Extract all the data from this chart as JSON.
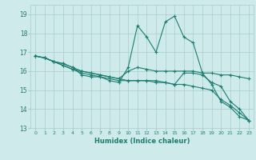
{
  "xlabel": "Humidex (Indice chaleur)",
  "xlim": [
    -0.5,
    23.5
  ],
  "ylim": [
    13.0,
    19.5
  ],
  "yticks": [
    13,
    14,
    15,
    16,
    17,
    18,
    19
  ],
  "xticks": [
    0,
    1,
    2,
    3,
    4,
    5,
    6,
    7,
    8,
    9,
    10,
    11,
    12,
    13,
    14,
    15,
    16,
    17,
    18,
    19,
    20,
    21,
    22,
    23
  ],
  "bg_color": "#ceeaea",
  "grid_color": "#a8cccc",
  "line_color": "#1e7d72",
  "line1": [
    16.8,
    16.7,
    16.5,
    16.4,
    16.2,
    15.8,
    15.7,
    15.7,
    15.5,
    15.4,
    16.2,
    18.4,
    17.8,
    17.0,
    18.6,
    18.9,
    17.8,
    17.5,
    15.9,
    15.3,
    14.4,
    14.1,
    13.6,
    13.4
  ],
  "line2": [
    16.8,
    16.7,
    16.5,
    16.4,
    16.2,
    16.0,
    15.9,
    15.8,
    15.7,
    15.6,
    16.0,
    16.2,
    16.1,
    16.0,
    16.0,
    16.0,
    16.0,
    16.0,
    15.9,
    15.9,
    15.8,
    15.8,
    15.7,
    15.6
  ],
  "line3": [
    16.8,
    16.7,
    16.5,
    16.3,
    16.1,
    15.9,
    15.8,
    15.7,
    15.6,
    15.5,
    15.5,
    15.5,
    15.5,
    15.4,
    15.4,
    15.3,
    15.3,
    15.2,
    15.1,
    15.0,
    14.5,
    14.2,
    13.8,
    13.4
  ],
  "line4": [
    16.8,
    16.7,
    16.5,
    16.3,
    16.1,
    16.0,
    15.9,
    15.8,
    15.7,
    15.6,
    15.5,
    15.5,
    15.5,
    15.5,
    15.4,
    15.3,
    15.9,
    15.9,
    15.8,
    15.4,
    15.2,
    14.4,
    14.0,
    13.4
  ]
}
